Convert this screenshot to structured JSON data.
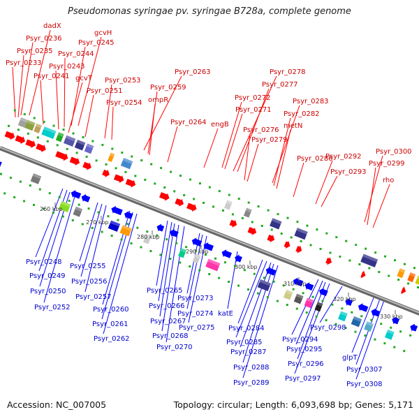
{
  "title": "Pseudomonas syringae pv. syringae B728a, complete genome",
  "footer": {
    "accession": "Accession: NC_007005",
    "topology": "Topology: circular; Length: 6,093,698 bp; Genes: 5,171"
  },
  "colors": {
    "forward": "#ff0000",
    "reverse": "#0000ff",
    "backbone": "#888888",
    "tick": "#22aa22"
  },
  "ticks": [
    {
      "label": "260 kbp"
    },
    {
      "label": "270 kbp"
    },
    {
      "label": "280 kbp"
    },
    {
      "label": "290 kbp"
    },
    {
      "label": "300 kbp"
    },
    {
      "label": "310 kbp"
    },
    {
      "label": "320 kbp"
    },
    {
      "label": "330 kbp"
    }
  ],
  "forward_labels": [
    "dadX",
    "gcvH",
    "Psyr_0236",
    "Psyr_0245",
    "Psyr_0235",
    "Psyr_0244",
    "Psyr_0233",
    "Psyr_0243",
    "gcvT",
    "Psyr_0241",
    "Psyr_0253",
    "Psyr_0251",
    "Psyr_0254",
    "Psyr_0263",
    "Psyr_0259",
    "ompR",
    "Psyr_0264",
    "engB",
    "Psyr_0278",
    "Psyr_0277",
    "Psyr_0272",
    "Psyr_0271",
    "Psyr_0276",
    "Psyr_0279",
    "Psyr_0283",
    "Psyr_0282",
    "metN",
    "Psyr_0286",
    "Psyr_0292",
    "Psyr_0293",
    "Psyr_0300",
    "Psyr_0299",
    "rho"
  ],
  "reverse_labels": [
    "Psyr_0248",
    "Psyr_0249",
    "Psyr_0250",
    "Psyr_0252",
    "Psyr_0255",
    "Psyr_0256",
    "Psyr_0257",
    "Psyr_0260",
    "Psyr_0261",
    "Psyr_0262",
    "Psyr_0265",
    "Psyr_0266",
    "Psyr_0267",
    "Psyr_0268",
    "Psyr_0270",
    "Psyr_0273",
    "Psyr_0274",
    "Psyr_0275",
    "katE",
    "Psyr_0284",
    "Psyr_0285",
    "Psyr_0287",
    "Psyr_0288",
    "Psyr_0289",
    "Psyr_0294",
    "Psyr_0295",
    "Psyr_0296",
    "Psyr_0297",
    "Psyr_0298",
    "glpT",
    "Psyr_0307",
    "Psyr_0308"
  ]
}
